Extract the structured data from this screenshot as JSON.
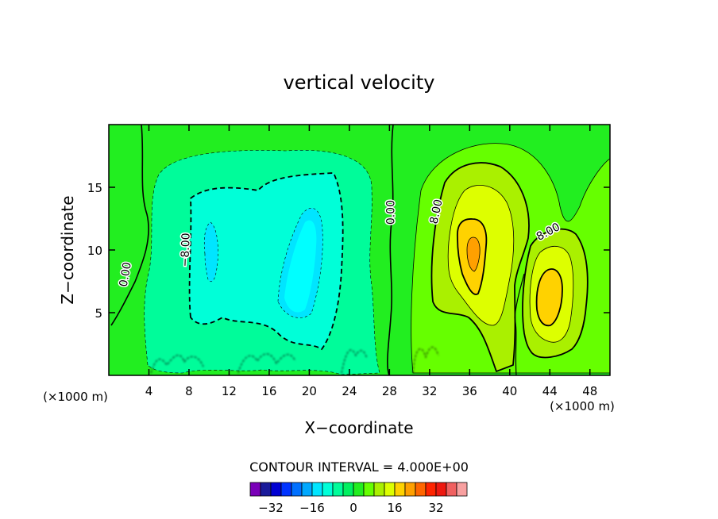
{
  "chart_data": {
    "type": "heatmap",
    "title": "vertical velocity",
    "xlabel": "X−coordinate",
    "ylabel": "Z−coordinate",
    "x_unit_left": "(×1000 m)",
    "x_unit_right": "(×1000 m)",
    "xlim": [
      0,
      50
    ],
    "ylim": [
      0,
      20
    ],
    "x_ticks": [
      4,
      8,
      12,
      16,
      20,
      24,
      28,
      32,
      36,
      40,
      44,
      48
    ],
    "y_ticks": [
      5,
      10,
      15
    ],
    "contour_interval_text": "CONTOUR INTERVAL = 4.000E+00",
    "contour_interval": 4,
    "contour_labels": [
      {
        "text": "0.00",
        "x": 2,
        "y": 8
      },
      {
        "text": "−8.00",
        "x": 8,
        "y": 10
      },
      {
        "text": "0.00",
        "x": 28.5,
        "y": 13
      },
      {
        "text": "8.00",
        "x": 33,
        "y": 13
      },
      {
        "text": "8.00",
        "x": 44,
        "y": 11.2
      }
    ],
    "fields": [
      {
        "name": "downdraft",
        "x_center": 16,
        "y_center": 9.5,
        "x_extent": [
          4,
          27
        ],
        "y_extent": [
          1,
          19
        ],
        "min_value": -18
      },
      {
        "name": "updraft_1",
        "x_center": 36.5,
        "y_center": 10,
        "x_extent": [
          29,
          44
        ],
        "y_extent": [
          2,
          18
        ],
        "max_value": 26
      },
      {
        "name": "updraft_2",
        "x_center": 43.5,
        "y_center": 6.5,
        "x_extent": [
          40,
          48
        ],
        "y_extent": [
          1,
          12
        ],
        "max_value": 22
      }
    ],
    "colorbar": {
      "levels": [
        -36,
        -32,
        -28,
        -24,
        -20,
        -16,
        -12,
        -8,
        -4,
        0,
        4,
        8,
        12,
        16,
        20,
        24,
        28,
        32,
        36
      ],
      "colors": [
        "#7a00b8",
        "#1a1a9a",
        "#0000d2",
        "#0033ff",
        "#0070ff",
        "#00a8ff",
        "#00e5ff",
        "#00ffd8",
        "#00fc9a",
        "#00f060",
        "#22ee20",
        "#66ff00",
        "#aaf000",
        "#ddff00",
        "#ffd200",
        "#ffa000",
        "#ff6600",
        "#ff2400",
        "#ee1810",
        "#f06060",
        "#f8a0a0"
      ],
      "tick_labels": [
        "−32",
        "−16",
        "0",
        "16",
        "32"
      ],
      "tick_values": [
        -32,
        -16,
        0,
        16,
        32
      ]
    }
  }
}
